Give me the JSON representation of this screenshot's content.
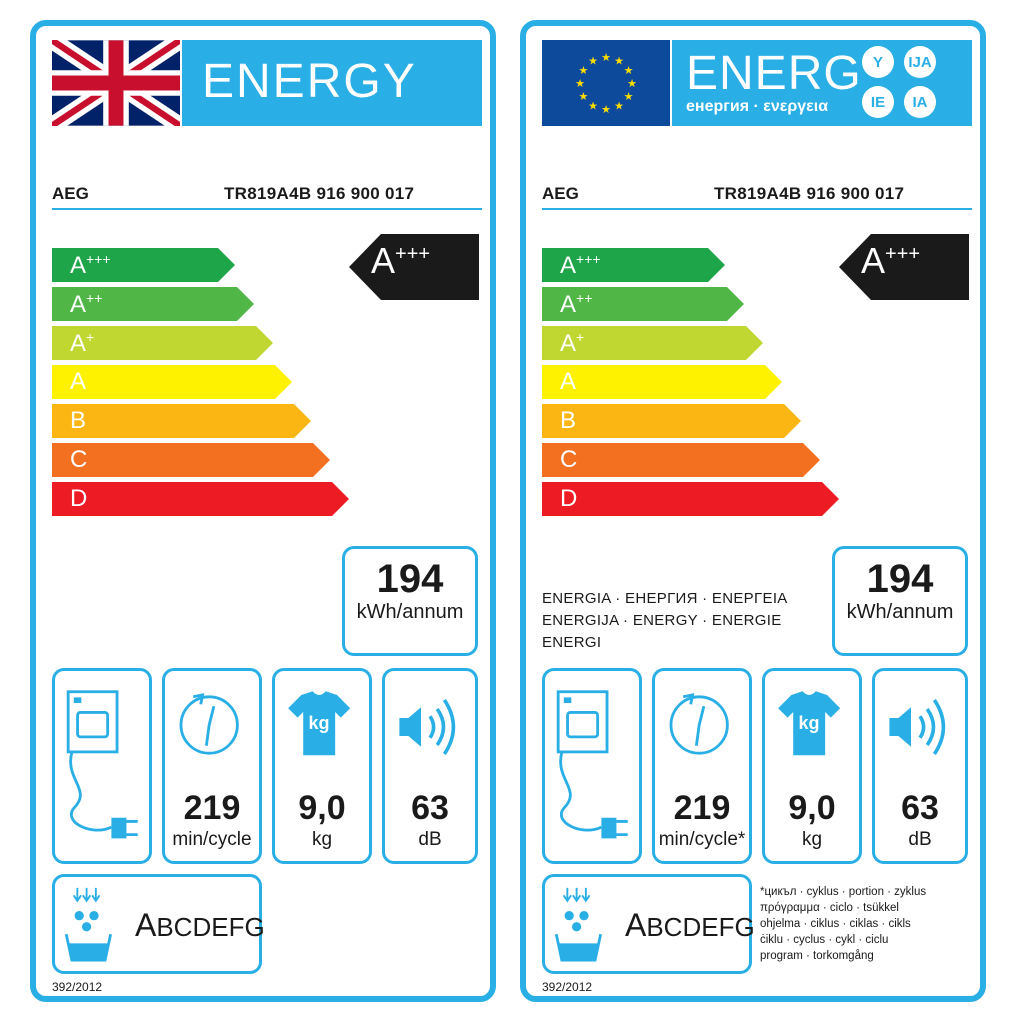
{
  "uk_label": {
    "energy_word": "ENERGY",
    "supplier": "AEG",
    "model": "TR819A4B  916 900 017",
    "scale": [
      {
        "main": "A",
        "sup": "+++",
        "color": "#1ea54a"
      },
      {
        "main": "A",
        "sup": "++",
        "color": "#50b747"
      },
      {
        "main": "A",
        "sup": "+",
        "color": "#bfd730"
      },
      {
        "main": "A",
        "sup": "",
        "color": "#fff200"
      },
      {
        "main": "B",
        "sup": "",
        "color": "#fcb614"
      },
      {
        "main": "C",
        "sup": "",
        "color": "#f37021"
      },
      {
        "main": "D",
        "sup": "",
        "color": "#ed1c24"
      }
    ],
    "rating_main": "A",
    "rating_sup": "+++",
    "consumption_value": "194",
    "consumption_unit": "kWh/annum",
    "cycle_time_value": "219",
    "cycle_time_unit": "min/cycle",
    "capacity_value": "9,0",
    "capacity_unit": "kg",
    "noise_value": "63",
    "noise_unit": "dB",
    "kg_icon_text": "kg",
    "condensation_classes": {
      "first": "A",
      "rest": "BCDEFG"
    },
    "regulation": "392/2012"
  },
  "eu_label": {
    "energy_word": "ENERG",
    "energy_sub": "енергия · ενεργεια",
    "language_bubbles": [
      "Y",
      "IJA",
      "IE",
      "IA"
    ],
    "supplier": "AEG",
    "model": "TR819A4B  916 900 017",
    "rating_main": "A",
    "rating_sup": "+++",
    "consumption_value": "194",
    "consumption_unit": "kWh/annum",
    "energia_lines": [
      "ENERGIA · ЕНЕРГИЯ · ΕΝΕΡΓΕΙΑ",
      "ENERGIJA · ENERGY · ENERGIE",
      "ENERGI"
    ],
    "cycle_time_value": "219",
    "cycle_time_unit": "min/cycle*",
    "capacity_value": "9,0",
    "capacity_unit": "kg",
    "noise_value": "63",
    "noise_unit": "dB",
    "kg_icon_text": "kg",
    "condensation_classes": {
      "first": "A",
      "rest": "BCDEFG"
    },
    "footnote_lines": [
      "*цикъл · cyklus · portion · zyklus",
      "πρόγραμμα · ciclo · tsükkel",
      "ohjelma · ciklus · ciklas · cikls",
      "ċiklu · cyclus · cykl · ciclu",
      "program · torkomgång"
    ],
    "regulation": "392/2012"
  },
  "colors": {
    "label_border": "#29aee6",
    "eu_blue": "#0e4a9c",
    "eu_star": "#ffdd00",
    "rating_arrow": "#1a1a1a"
  }
}
